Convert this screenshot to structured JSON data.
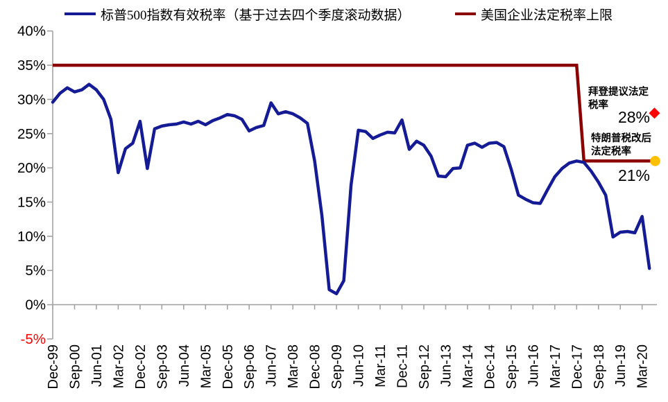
{
  "legend": [
    {
      "label": "标普500指数有效税率（基于过去四个季度滚动数据）",
      "color": "#141B94"
    },
    {
      "label": "美国企业法定税率上限",
      "color": "#8B0000"
    }
  ],
  "y_axis": {
    "tick_labels": [
      "40%",
      "35%",
      "30%",
      "25%",
      "20%",
      "15%",
      "10%",
      "5%",
      "0%",
      "-5%"
    ],
    "negative_color": "#FF0000"
  },
  "annotations": {
    "biden": {
      "label_line1": "拜登提议法定",
      "label_line2": "税率",
      "value_label": "28%",
      "value": 28,
      "marker": "red-diamond",
      "marker_color": "#FF0000"
    },
    "trump": {
      "label_line1": "特朗普税改后",
      "label_line2": "法定税率",
      "value_label": "21%",
      "value": 21,
      "marker": "orange-circle",
      "marker_color": "#FFC000"
    }
  },
  "chart_data": {
    "type": "line",
    "x_start": "Dec-99",
    "x_end": "Jun-20",
    "frequency": "quarterly",
    "points_per_label": 3,
    "x_tick_labels": [
      "Dec-99",
      "Sep-00",
      "Jun-01",
      "Mar-02",
      "Dec-02",
      "Sep-03",
      "Jun-04",
      "Mar-05",
      "Dec-05",
      "Sep-06",
      "Jun-07",
      "Mar-08",
      "Dec-08",
      "Sep-09",
      "Jun-10",
      "Mar-11",
      "Dec-11",
      "Sep-12",
      "Jun-13",
      "Mar-14",
      "Dec-14",
      "Sep-15",
      "Jun-16",
      "Mar-17",
      "Dec-17",
      "Sep-18",
      "Jun-19",
      "Mar-20"
    ],
    "y_ticks_pct": [
      40,
      35,
      30,
      25,
      20,
      15,
      10,
      5,
      0,
      -5
    ],
    "ylim": [
      -5,
      40
    ],
    "grid": false,
    "legend_position": "top",
    "series": [
      {
        "name": "标普500指数有效税率（基于过去四个季度滚动数据）",
        "color": "#141B94",
        "values": [
          29.6,
          30.9,
          31.7,
          31.1,
          31.4,
          32.2,
          31.4,
          30.0,
          27.1,
          19.3,
          22.8,
          23.6,
          26.8,
          19.9,
          25.7,
          26.1,
          26.3,
          26.4,
          26.7,
          26.4,
          26.8,
          26.3,
          26.9,
          27.3,
          27.8,
          27.6,
          27.1,
          25.4,
          25.9,
          26.2,
          29.5,
          27.9,
          28.2,
          27.9,
          27.3,
          26.5,
          21.0,
          13.0,
          2.2,
          1.6,
          3.5,
          17.5,
          25.5,
          25.3,
          24.3,
          24.8,
          25.2,
          25.1,
          27.0,
          22.7,
          23.9,
          23.3,
          21.7,
          18.8,
          18.7,
          19.9,
          20.0,
          23.3,
          23.6,
          23.0,
          23.6,
          23.7,
          23.1,
          19.8,
          16.0,
          15.4,
          14.9,
          14.8,
          16.8,
          18.7,
          19.9,
          20.7,
          21.0,
          20.8,
          19.5,
          17.9,
          16.0,
          9.9,
          10.6,
          10.7,
          10.5,
          12.9,
          5.3
        ]
      },
      {
        "name": "美国企业法定税率上限",
        "color": "#8B0000",
        "segments": [
          {
            "from": "Dec-99",
            "to": "Dec-17",
            "from_index": 0,
            "to_index": 72,
            "value": 35
          },
          {
            "from": "Mar-18",
            "to": "Jun-20",
            "from_index": 73,
            "to_index": 82,
            "value": 21
          }
        ]
      }
    ]
  }
}
